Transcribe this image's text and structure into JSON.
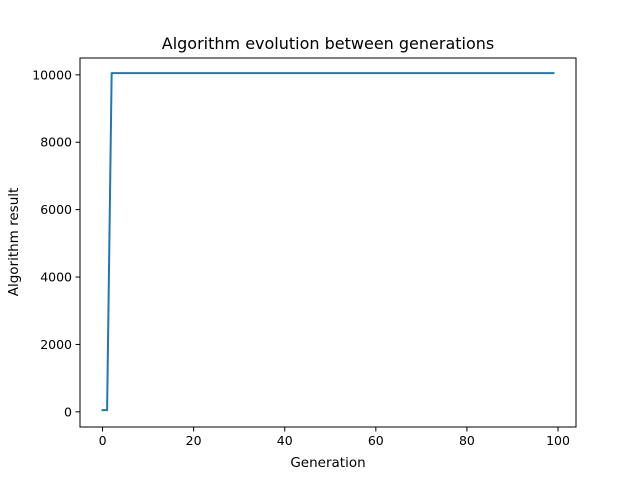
{
  "chart_data": {
    "type": "line",
    "title": "Algorithm evolution between generations",
    "xlabel": "Generation",
    "ylabel": "Algorithm result",
    "xlim": [
      -4.95,
      103.95
    ],
    "ylim": [
      -450,
      10500
    ],
    "xticks": [
      0,
      20,
      40,
      60,
      80,
      100
    ],
    "yticks": [
      0,
      2000,
      4000,
      6000,
      8000,
      10000
    ],
    "grid": false,
    "series": [
      {
        "color": "#1f77b4",
        "x": [
          0,
          1,
          2,
          99
        ],
        "y": [
          50,
          50,
          10050,
          10050
        ]
      }
    ]
  }
}
